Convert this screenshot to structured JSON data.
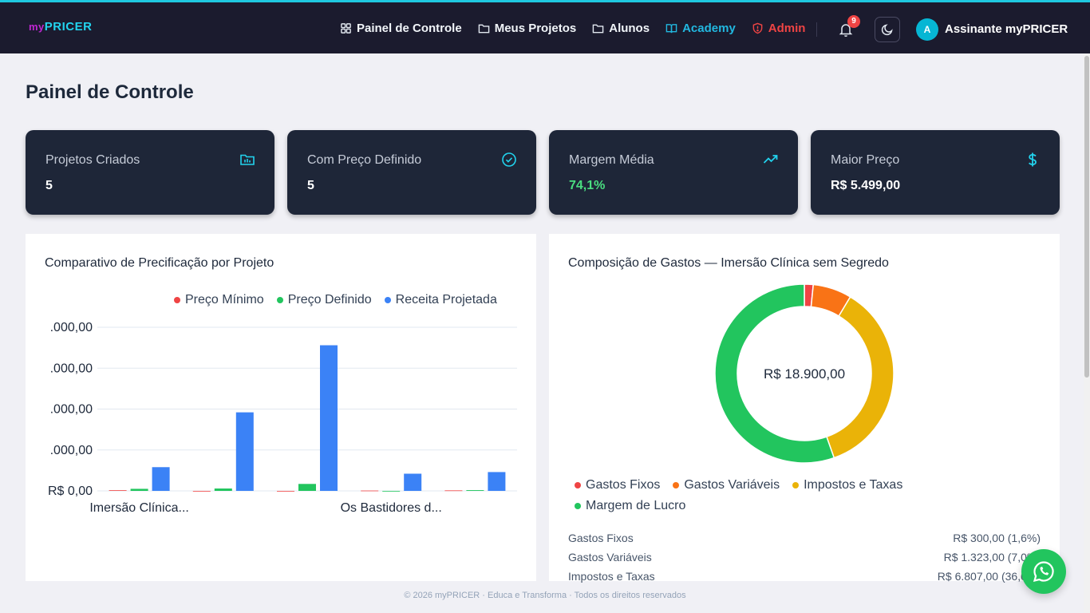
{
  "brand": {
    "prefix": "my",
    "name": "PRICER"
  },
  "nav": [
    {
      "label": "Painel de Controle",
      "icon": "grid-icon"
    },
    {
      "label": "Meus Projetos",
      "icon": "folder-icon"
    },
    {
      "label": "Alunos",
      "icon": "folder-icon"
    },
    {
      "label": "Academy",
      "icon": "book-icon",
      "color": "#22b8e0"
    },
    {
      "label": "Admin",
      "icon": "shield-icon",
      "color": "#ef4444"
    }
  ],
  "notifications": {
    "count": "9"
  },
  "user": {
    "initial": "A",
    "name": "Assinante myPRICER"
  },
  "page": {
    "title": "Painel de Controle"
  },
  "stats": [
    {
      "label": "Projetos Criados",
      "value": "5",
      "icon": "folder-chart-icon"
    },
    {
      "label": "Com Preço Definido",
      "value": "5",
      "icon": "check-circle-icon"
    },
    {
      "label": "Margem Média",
      "value": "74,1%",
      "icon": "trending-up-icon",
      "value_color": "#4ade80"
    },
    {
      "label": "Maior Preço",
      "value": "R$ 5.499,00",
      "icon": "dollar-icon"
    }
  ],
  "bar_panel": {
    "title": "Comparativo de Precificação por Projeto"
  },
  "donut_panel": {
    "title": "Composição de Gastos — Imersão Clínica sem Segredo",
    "center_label": "R$ 18.900,00",
    "breakdown": [
      {
        "label": "Gastos Fixos",
        "value": "R$ 300,00 (1,6%)"
      },
      {
        "label": "Gastos Variáveis",
        "value": "R$ 1.323,00 (7,0%)"
      },
      {
        "label": "Impostos e Taxas",
        "value": "R$ 6.807,00 (36,0%)"
      }
    ]
  },
  "chart_data": [
    {
      "type": "bar",
      "title": "Comparativo de Precificação por Projeto",
      "categories": [
        "Imersão Clínica...",
        "",
        "",
        "Os Bastidores d...",
        ""
      ],
      "series": [
        {
          "name": "Preço Mínimo",
          "color": "#ef4444",
          "values": [
            80,
            0,
            0,
            40,
            60
          ]
        },
        {
          "name": "Preço Definido",
          "color": "#22c55e",
          "values": [
            250,
            290,
            850,
            0,
            90
          ]
        },
        {
          "name": "Receita Projetada",
          "color": "#3b82f6",
          "values": [
            2900,
            9600,
            17800,
            2100,
            2300
          ]
        }
      ],
      "ytick_labels": [
        ".000,00",
        ".000,00",
        ".000,00",
        ".000,00",
        "R$ 0,00"
      ],
      "yticks": [
        20000,
        15000,
        10000,
        5000,
        0
      ],
      "ylim": [
        0,
        20000
      ],
      "grid": true,
      "legend": "top-right"
    },
    {
      "type": "pie",
      "title": "Composição de Gastos — Imersão Clínica sem Segredo",
      "labels": [
        "Gastos Fixos",
        "Gastos Variáveis",
        "Impostos e Taxas",
        "Margem de Lucro"
      ],
      "values": [
        1.6,
        7.0,
        36.0,
        55.4
      ],
      "colors": [
        "#ef4444",
        "#f97316",
        "#eab308",
        "#22c55e"
      ],
      "legend": "bottom"
    }
  ],
  "footer": {
    "text": "© 2026 myPRICER · Educa e Transforma · Todos os direitos reservados"
  }
}
